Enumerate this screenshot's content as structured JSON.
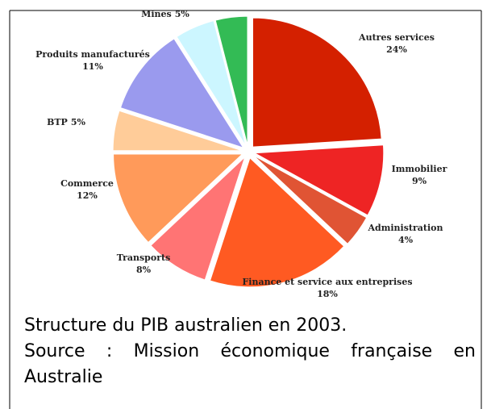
{
  "chart_data": {
    "type": "pie",
    "categories": [
      "Autres services",
      "Immobilier",
      "Administration",
      "Finance et service aux entreprises",
      "Transports",
      "Commerce",
      "BTP",
      "Produits manufacturés",
      "Mines",
      null
    ],
    "values": [
      24,
      9,
      4,
      18,
      8,
      12,
      5,
      11,
      5,
      4
    ],
    "value_labels": [
      "24%",
      "9%",
      "4%",
      "18%",
      "8%",
      "12%",
      "5%",
      "11%",
      "5%",
      null
    ],
    "colors": [
      "#d42000",
      "#ee2424",
      "#e05434",
      "#ff5a22",
      "#ff7474",
      "#ff9a5a",
      "#ffcc99",
      "#9a9aee",
      "#ccf6ff",
      "#33bb55"
    ]
  },
  "caption": [
    "Structure du PIB australien en 2003.",
    "Source : Mission économique française en Australie"
  ]
}
